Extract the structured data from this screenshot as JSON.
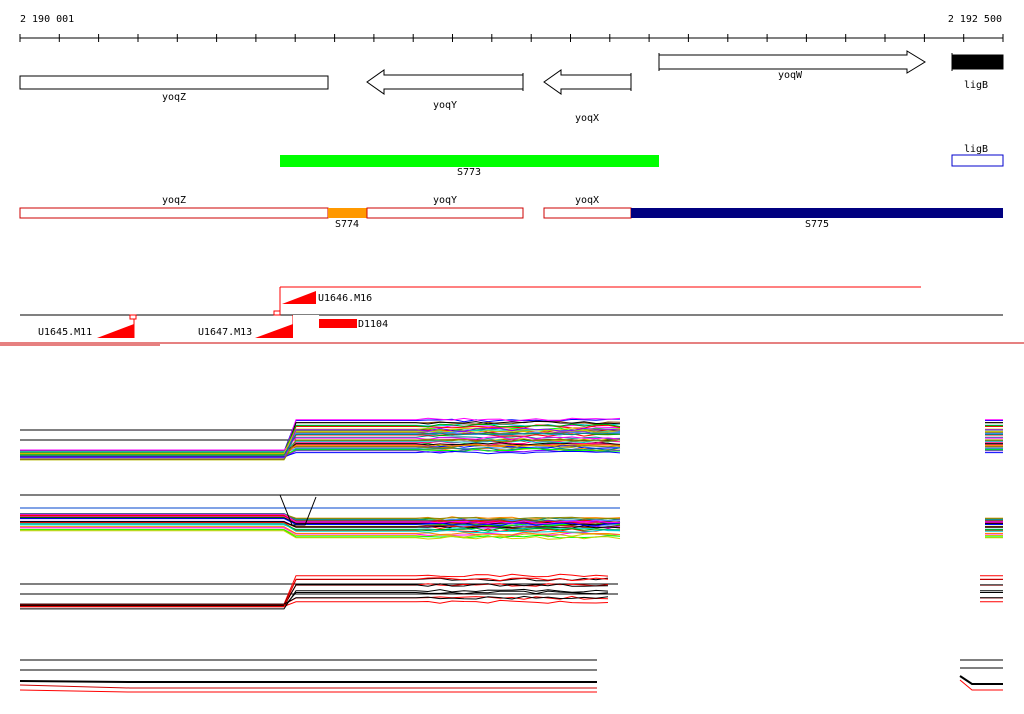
{
  "coords": {
    "start": "2 190 001",
    "end": "2 192 500"
  },
  "genes": [
    {
      "name": "yoqZ",
      "strand": "none",
      "style": "outline"
    },
    {
      "name": "yoqY",
      "strand": "minus",
      "style": "outline"
    },
    {
      "name": "yoqX",
      "strand": "minus",
      "style": "outline"
    },
    {
      "name": "yoqW",
      "strand": "plus",
      "style": "outline"
    },
    {
      "name": "ligB",
      "strand": "none",
      "style": "filled",
      "color": "#000000"
    }
  ],
  "segments_row1": [
    {
      "name": "S773",
      "color": "#00ff00"
    },
    {
      "name": "ligB",
      "color": "#0000cc",
      "style": "outline"
    }
  ],
  "segments_row2": [
    {
      "name": "yoqZ",
      "color": "#cc0000",
      "style": "outline"
    },
    {
      "name": "S774",
      "color": "#ff9900"
    },
    {
      "name": "yoqY",
      "color": "#cc0000",
      "style": "outline"
    },
    {
      "name": "yoqX",
      "color": "#cc0000",
      "style": "outline"
    },
    {
      "name": "S775",
      "color": "#000080"
    }
  ],
  "probes": [
    "U1646.M16",
    "U1645.M11",
    "U1647.M13",
    "D1104"
  ],
  "colors": {
    "probe": "#ff0000",
    "axis": "#000000"
  },
  "tracks": [
    {
      "id": "expression-track-1",
      "style": "multicolor"
    },
    {
      "id": "expression-track-2",
      "style": "multicolor"
    },
    {
      "id": "expression-track-3",
      "style": "red-black"
    },
    {
      "id": "expression-track-4",
      "style": "red-black"
    }
  ]
}
